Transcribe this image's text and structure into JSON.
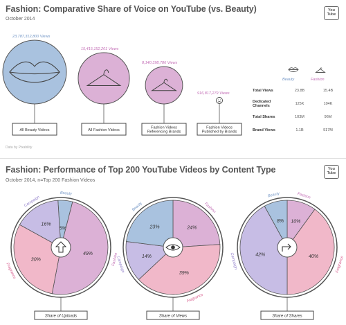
{
  "header": {
    "title": "Fashion: Comparative Share of Voice on YouTube (vs. Beauty)",
    "subtitle": "October 2014",
    "logo_text": "You Tube"
  },
  "section2": {
    "title": "Fashion: Performance of Top 200 YouTube Videos by Content Type",
    "subtitle": "October 2014, n=Top 200 Fashion Videos",
    "logo_text": "You Tube"
  },
  "source": "Data by Pixability",
  "colors": {
    "beauty": "#9ab7d9",
    "fashion": "#d6a3cf",
    "campaign": "#bdb2e0",
    "fragrance": "#efabc0",
    "beauty_text": "#6f93c4",
    "fashion_text": "#c26cb5"
  },
  "chart_data": [
    {
      "type": "bar",
      "title": "Fashion: Comparative Share of Voice on YouTube (vs. Beauty)",
      "subtitle": "October 2014",
      "categories": [
        "All Beauty Videos",
        "All Fashion Videos",
        "Fashion Videos Referencing Brands",
        "Fashion Videos Published by Brands"
      ],
      "values": [
        23787312800,
        15415152201,
        8140398786,
        916817279
      ],
      "value_labels": [
        "23,787,312,800 Views",
        "15,415,152,201 Views",
        "8,140,398,786 Views",
        "916,817,279 Views"
      ],
      "icons": [
        "lips-icon",
        "hanger-icon",
        "hanger-icon",
        "frown-face-icon"
      ]
    },
    {
      "type": "table",
      "columns": [
        "",
        "Beauty",
        "Fashion"
      ],
      "rows": [
        [
          "Total Views",
          "23.8B",
          "15.4B"
        ],
        [
          "Dedicated Channels",
          "125K",
          "104K"
        ],
        [
          "Total Shares",
          "103M",
          "96M"
        ],
        [
          "Brand Views",
          "1.1B",
          "917M"
        ]
      ]
    },
    {
      "type": "pie",
      "title": "Share of Uploads",
      "center_icon": "upload-arrow-icon",
      "slices": [
        {
          "label": "Beauty",
          "value": 5,
          "text": "5%"
        },
        {
          "label": "Fashion",
          "value": 49,
          "text": "49%"
        },
        {
          "label": "Fragrance",
          "value": 30,
          "text": "30%"
        },
        {
          "label": "Campaign",
          "value": 16,
          "text": "16%"
        }
      ]
    },
    {
      "type": "pie",
      "title": "Share of Views",
      "center_icon": "eye-icon",
      "slices": [
        {
          "label": "Fashion",
          "value": 24,
          "text": "24%"
        },
        {
          "label": "Fragrance",
          "value": 39,
          "text": "39%"
        },
        {
          "label": "Campaign",
          "value": 14,
          "text": "14%"
        },
        {
          "label": "Beauty",
          "value": 23,
          "text": "23%"
        }
      ]
    },
    {
      "type": "pie",
      "title": "Share of Shares",
      "center_icon": "share-arrow-icon",
      "slices": [
        {
          "label": "Fashion",
          "value": 10,
          "text": "10%"
        },
        {
          "label": "Fragrance",
          "value": 40,
          "text": "40%"
        },
        {
          "label": "Campaign",
          "value": 42,
          "text": "42%"
        },
        {
          "label": "Beauty",
          "value": 8,
          "text": "8%"
        }
      ]
    }
  ]
}
